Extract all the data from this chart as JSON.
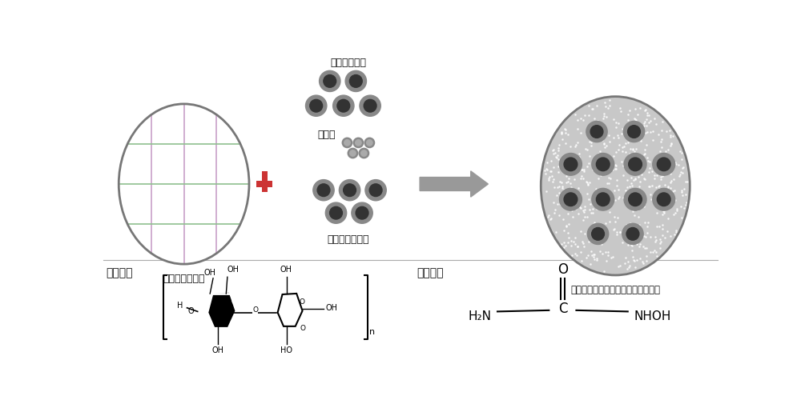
{
  "bg_color": "#ffffff",
  "left_circle_label": "琼脂糖凝胶微球",
  "middle_label_top": "葡萄糖氧化酶",
  "middle_label_mid": "羟基脲",
  "middle_label_bot": "辣根过氧化物酶",
  "right_circle_label": "包被酶和一氧化氮前体的琼脂糖微球",
  "bottom_left_label": "琼脂糖：",
  "bottom_right_label": "羟基脲：",
  "text_color": "#111111",
  "grid_color_v": "#c8a0c8",
  "grid_color_h": "#90c090",
  "circle_edge_color": "#888888",
  "dot_outer_color": "#888888",
  "dot_inner_dark": "#333333",
  "dot_inner_light": "#aaaaaa",
  "arrow_color": "#888888",
  "right_fill_color": "#bbbbbb",
  "right_hatch_color": "#cccccc"
}
